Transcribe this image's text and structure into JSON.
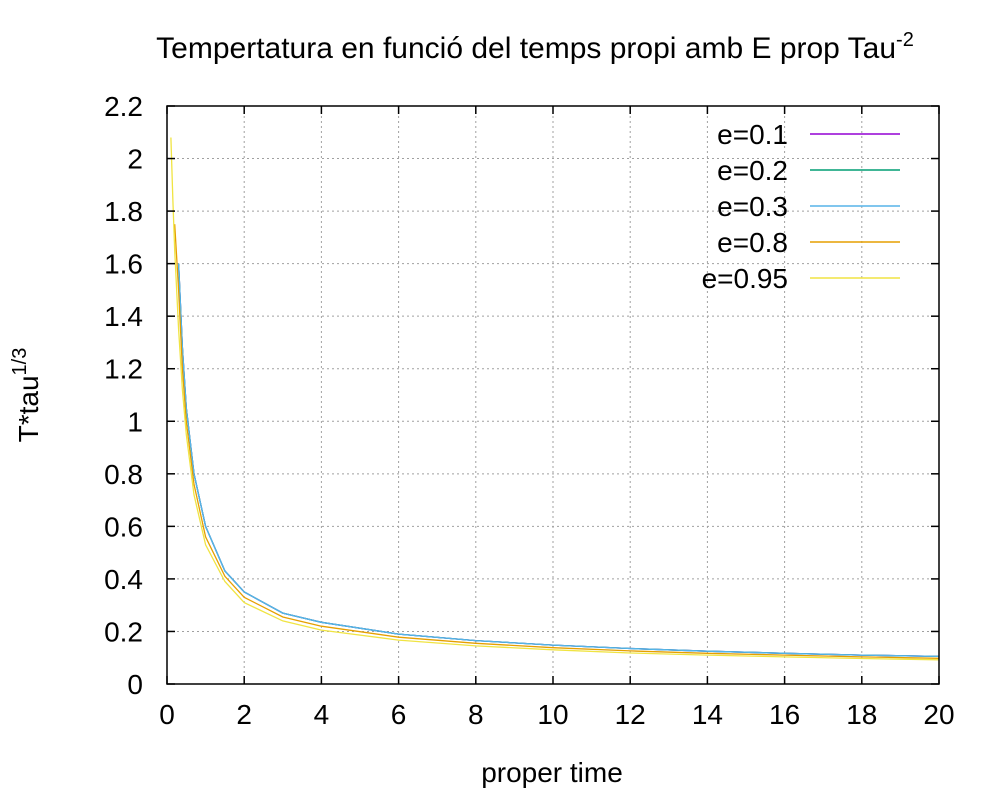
{
  "chart_data": {
    "type": "line",
    "title": "Tempertatura en funció del temps propi amb E prop Tau",
    "title_superscript": "-2",
    "xlabel": "proper time",
    "ylabel": "T*tau",
    "ylabel_superscript": "1/3",
    "xlim": [
      0,
      20
    ],
    "ylim": [
      0,
      2.2
    ],
    "xticks": [
      0,
      2,
      4,
      6,
      8,
      10,
      12,
      14,
      16,
      18,
      20
    ],
    "xtick_labels": [
      "0",
      "2",
      "4",
      "6",
      "8",
      "10",
      "12",
      "14",
      "16",
      "18",
      "20"
    ],
    "yticks": [
      0,
      0.2,
      0.4,
      0.6,
      0.8,
      1,
      1.2,
      1.4,
      1.6,
      1.8,
      2,
      2.2
    ],
    "ytick_labels": [
      "0",
      "0.2",
      "0.4",
      "0.6",
      "0.8",
      "1",
      "1.2",
      "1.4",
      "1.6",
      "1.8",
      "2",
      "2.2"
    ],
    "grid": true,
    "legend_position": "top-right",
    "series": [
      {
        "name": "e=0.1",
        "color": "#9400d3",
        "x": [
          0.3,
          0.4,
          0.5,
          0.7,
          1,
          1.5,
          2,
          3,
          4,
          6,
          8,
          10,
          12,
          14,
          16,
          18,
          20
        ],
        "y": [
          1.6,
          1.28,
          1.05,
          0.8,
          0.6,
          0.43,
          0.35,
          0.27,
          0.235,
          0.19,
          0.165,
          0.148,
          0.135,
          0.125,
          0.117,
          0.11,
          0.105
        ]
      },
      {
        "name": "e=0.2",
        "color": "#009e73",
        "x": [
          0.3,
          0.4,
          0.5,
          0.7,
          1,
          1.5,
          2,
          3,
          4,
          6,
          8,
          10,
          12,
          14,
          16,
          18,
          20
        ],
        "y": [
          1.6,
          1.28,
          1.05,
          0.8,
          0.6,
          0.43,
          0.35,
          0.27,
          0.235,
          0.19,
          0.165,
          0.148,
          0.135,
          0.125,
          0.117,
          0.11,
          0.105
        ]
      },
      {
        "name": "e=0.3",
        "color": "#56b4e9",
        "x": [
          0.3,
          0.4,
          0.5,
          0.7,
          1,
          1.5,
          2,
          3,
          4,
          6,
          8,
          10,
          12,
          14,
          16,
          18,
          20
        ],
        "y": [
          1.6,
          1.28,
          1.05,
          0.8,
          0.6,
          0.43,
          0.35,
          0.27,
          0.235,
          0.19,
          0.165,
          0.148,
          0.135,
          0.125,
          0.117,
          0.11,
          0.105
        ]
      },
      {
        "name": "e=0.8",
        "color": "#e69f00",
        "x": [
          0.2,
          0.3,
          0.4,
          0.5,
          0.7,
          1,
          1.5,
          2,
          3,
          4,
          6,
          8,
          10,
          12,
          14,
          16,
          18,
          20
        ],
        "y": [
          1.75,
          1.5,
          1.2,
          1.0,
          0.76,
          0.56,
          0.41,
          0.33,
          0.255,
          0.22,
          0.178,
          0.155,
          0.138,
          0.126,
          0.117,
          0.11,
          0.103,
          0.098
        ]
      },
      {
        "name": "e=0.95",
        "color": "#f0e442",
        "x": [
          0.1,
          0.15,
          0.2,
          0.3,
          0.4,
          0.5,
          0.7,
          1,
          1.5,
          2,
          3,
          4,
          6,
          8,
          10,
          12,
          14,
          16,
          18,
          20
        ],
        "y": [
          2.08,
          1.85,
          1.65,
          1.35,
          1.12,
          0.95,
          0.72,
          0.53,
          0.39,
          0.31,
          0.24,
          0.205,
          0.167,
          0.145,
          0.13,
          0.118,
          0.11,
          0.103,
          0.097,
          0.092
        ]
      }
    ]
  }
}
